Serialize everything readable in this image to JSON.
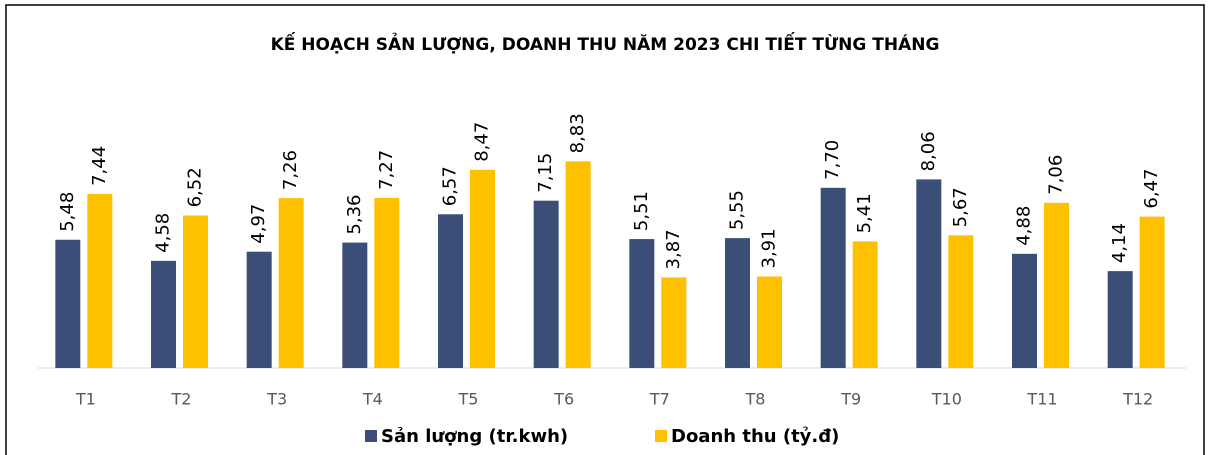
{
  "chart_data": {
    "type": "bar",
    "title": "KẾ HOẠCH SẢN LƯỢNG, DOANH THU NĂM 2023 CHI TIẾT TỪNG THÁNG",
    "categories": [
      "T1",
      "T2",
      "T3",
      "T4",
      "T5",
      "T6",
      "T7",
      "T8",
      "T9",
      "T10",
      "T11",
      "T12"
    ],
    "series": [
      {
        "name": "Sản lượng (tr.kwh)",
        "color": "#3b4e78",
        "values": [
          5.48,
          4.58,
          4.97,
          5.36,
          6.57,
          7.15,
          5.51,
          5.55,
          7.7,
          8.06,
          4.88,
          4.14
        ],
        "value_labels": [
          "5,48",
          "4,58",
          "4,97",
          "5,36",
          "6,57",
          "7,15",
          "5,51",
          "5,55",
          "7,70",
          "8,06",
          "4,88",
          "4,14"
        ]
      },
      {
        "name": "Doanh thu (tỷ.đ)",
        "color": "#ffc000",
        "values": [
          7.44,
          6.52,
          7.26,
          7.27,
          8.47,
          8.83,
          3.87,
          3.91,
          5.41,
          5.67,
          7.06,
          6.47
        ],
        "value_labels": [
          "7,44",
          "6,52",
          "7,26",
          "7,27",
          "8,47",
          "8,83",
          "3,87",
          "3,91",
          "5,41",
          "5,67",
          "7,06",
          "6,47"
        ]
      }
    ],
    "ylim": [
      0,
      10
    ],
    "legend": "bottom"
  }
}
